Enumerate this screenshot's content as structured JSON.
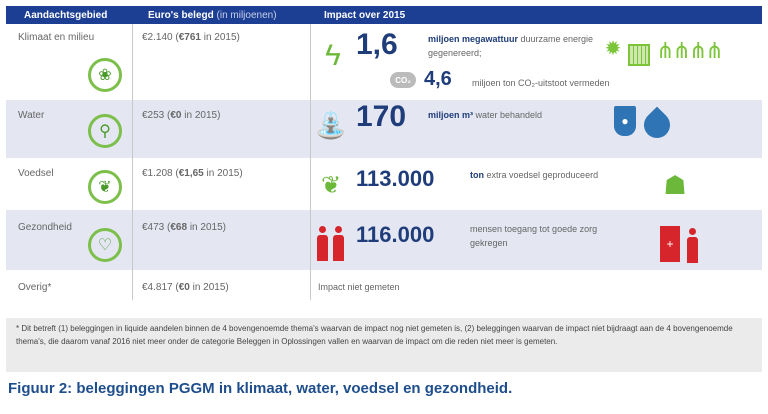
{
  "headers": [
    "Aandachtsgebied",
    "Euro's belegd",
    "(in miljoenen)",
    "Impact over 2015"
  ],
  "rows": [
    {
      "area": "Klimaat en milieu",
      "invest": "€2.140 (",
      "invest_bold": "€761",
      "invest_tail": " in 2015)",
      "big": "1,6",
      "text_bold": "miljoen megawattuur",
      "text": " duurzame energie gegenereerd;",
      "big2": "4,6",
      "text2": "miljoen ton CO₂-uitstoot vermeden",
      "co2": "CO₂"
    },
    {
      "area": "Water",
      "invest": "€253   (",
      "invest_bold": "€0",
      "invest_tail": " in 2015)",
      "big": "170",
      "text_bold": "miljoen m³",
      "text": " water behandeld"
    },
    {
      "area": "Voedsel",
      "invest": "€1.208 (",
      "invest_bold": "€1,65",
      "invest_tail": " in 2015)",
      "big": "113.000",
      "text_bold": "ton",
      "text": " extra voedsel geproduceerd"
    },
    {
      "area": "Gezondheid",
      "invest": "€473 (",
      "invest_bold": "€68",
      "invest_tail": " in 2015)",
      "big": "116.000",
      "text_bold": "",
      "text": "mensen toegang tot goede zorg gekregen"
    },
    {
      "area": "Overig*",
      "invest": "€4.817 (",
      "invest_bold": "€0",
      "invest_tail": " in 2015)",
      "text": "Impact niet gemeten"
    }
  ],
  "footnote": "* Dit betreft (1) beleggingen in liquide aandelen binnen de 4 bovengenoemde thema's waarvan de impact nog niet gemeten is, (2) beleggingen waarvan de impact niet bijdraagt aan de 4 bovengenoemde thema's, die daarom vanaf 2016 niet meer onder de categorie Beleggen in Oplossingen vallen en waarvan de impact om die reden niet meer is gemeten.",
  "caption": "Figuur 2: beleggingen PGGM in klimaat, water, voedsel en gezondheid."
}
